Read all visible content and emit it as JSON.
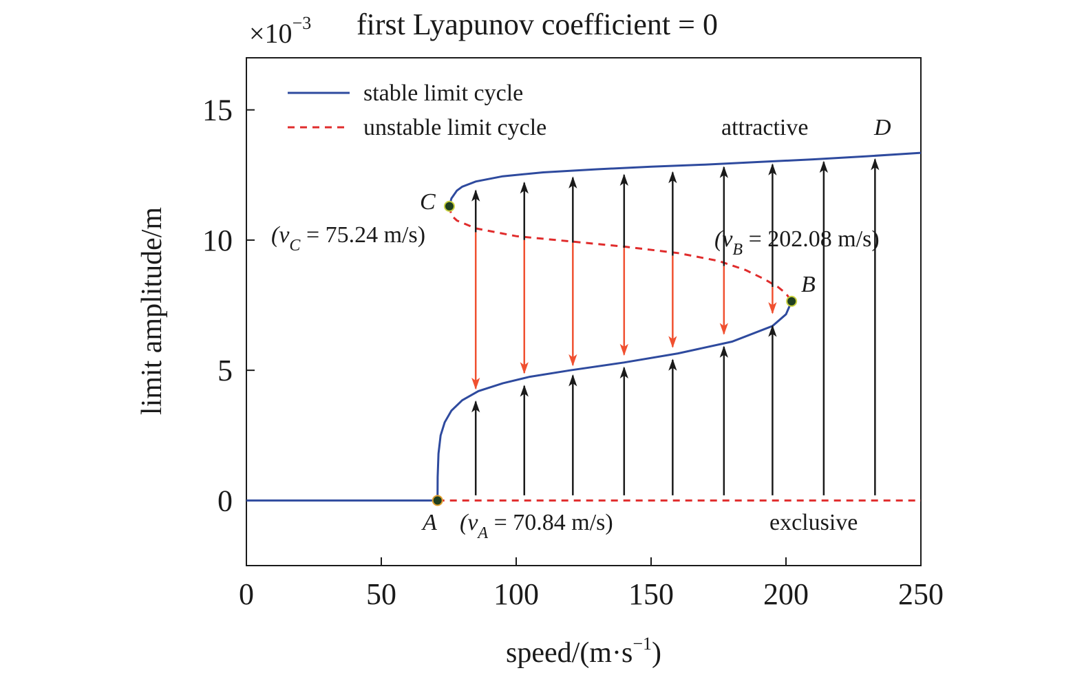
{
  "chart_data": {
    "type": "line",
    "title": "first Lyapunov coefficient = 0",
    "y_multiplier": "×10",
    "y_multiplier_exp": "−3",
    "xlabel": "speed/(m·s",
    "xlabel_exp": "−1",
    "xlabel_close": ")",
    "ylabel": "limit amplitude/m",
    "xlim": [
      0,
      250
    ],
    "ylim": [
      -2.5,
      17
    ],
    "xticks": [
      0,
      50,
      100,
      150,
      200,
      250
    ],
    "yticks": [
      0,
      5,
      10,
      15
    ],
    "colors": {
      "stable": "#2e4a9e",
      "unstable": "#e02c2c",
      "arrow_black": "#1a1a1a",
      "arrow_red": "#f05030",
      "point_fill": "#1f3f1f",
      "point_edge_A": "#e0a030",
      "point_edge": "#c8d040"
    },
    "legend": {
      "placement": "top-left",
      "entries": [
        {
          "label": "stable limit cycle",
          "style": "solid",
          "color": "#2e4a9e"
        },
        {
          "label": "unstable limit cycle",
          "style": "dashed",
          "color": "#e02c2c"
        }
      ]
    },
    "series": [
      {
        "name": "stable limit cycle",
        "style": "solid",
        "segments": [
          {
            "x": [
              0,
              70.84
            ],
            "y": [
              0,
              0
            ]
          },
          {
            "x": [
              70.84,
              70.9,
              71.2,
              72,
              73.5,
              76,
              80,
              86,
              95,
              105,
              120,
              140,
              160,
              180,
              195,
              200,
              202.08
            ],
            "y": [
              0,
              0.9,
              1.8,
              2.5,
              3.0,
              3.45,
              3.85,
              4.2,
              4.5,
              4.75,
              5.0,
              5.3,
              5.65,
              6.1,
              6.7,
              7.15,
              7.65
            ]
          },
          {
            "x": [
              75.24,
              76,
              78,
              80,
              85,
              95,
              110,
              130,
              150,
              170,
              190,
              210,
              230,
              250
            ],
            "y": [
              11.3,
              11.6,
              11.9,
              12.05,
              12.25,
              12.45,
              12.6,
              12.72,
              12.82,
              12.9,
              13.0,
              13.1,
              13.22,
              13.35
            ]
          }
        ]
      },
      {
        "name": "unstable limit cycle",
        "style": "dashed",
        "segments": [
          {
            "x": [
              70.84,
              250
            ],
            "y": [
              0,
              0
            ]
          },
          {
            "x": [
              75.24,
              76,
              78,
              85,
              100,
              120,
              140,
              160,
              175,
              185,
              192,
              197,
              200,
              202.08
            ],
            "y": [
              11.3,
              10.95,
              10.75,
              10.45,
              10.15,
              9.95,
              9.75,
              9.5,
              9.2,
              8.85,
              8.5,
              8.2,
              7.95,
              7.65
            ]
          }
        ]
      }
    ],
    "points": [
      {
        "label": "A",
        "x": 70.84,
        "y": 0,
        "note": "(v",
        "sub": "A",
        "value": " = 70.84 m/s)"
      },
      {
        "label": "B",
        "x": 202.08,
        "y": 7.65,
        "note": "(v",
        "sub": "B",
        "value": " = 202.08 m/s)"
      },
      {
        "label": "C",
        "x": 75.24,
        "y": 11.3,
        "note": "(v",
        "sub": "C",
        "value": " = 75.24 m/s)"
      }
    ],
    "label_D": "D",
    "text_attractive": "attractive",
    "text_exclusive": "exclusive",
    "arrows": {
      "up_lower": [
        {
          "x": 85,
          "y0": 0.2,
          "y1": 3.8
        },
        {
          "x": 103,
          "y0": 0.2,
          "y1": 4.4
        },
        {
          "x": 121,
          "y0": 0.2,
          "y1": 4.8
        },
        {
          "x": 140,
          "y0": 0.2,
          "y1": 5.1
        },
        {
          "x": 158,
          "y0": 0.2,
          "y1": 5.4
        },
        {
          "x": 177,
          "y0": 0.2,
          "y1": 5.9
        },
        {
          "x": 195,
          "y0": 0.2,
          "y1": 6.7
        }
      ],
      "up_upper": [
        {
          "x": 85,
          "y0": 10.3,
          "y1": 11.9
        },
        {
          "x": 103,
          "y0": 10.0,
          "y1": 12.2
        },
        {
          "x": 121,
          "y0": 9.9,
          "y1": 12.4
        },
        {
          "x": 140,
          "y0": 9.7,
          "y1": 12.5
        },
        {
          "x": 158,
          "y0": 9.4,
          "y1": 12.6
        },
        {
          "x": 177,
          "y0": 9.0,
          "y1": 12.8
        },
        {
          "x": 195,
          "y0": 8.2,
          "y1": 12.9
        }
      ],
      "up_full": [
        {
          "x": 214,
          "y0": 0.2,
          "y1": 13.0
        },
        {
          "x": 233,
          "y0": 0.2,
          "y1": 13.1
        }
      ],
      "down_red": [
        {
          "x": 85,
          "y0": 10.3,
          "y1": 4.3
        },
        {
          "x": 103,
          "y0": 10.0,
          "y1": 4.9
        },
        {
          "x": 121,
          "y0": 9.9,
          "y1": 5.2
        },
        {
          "x": 140,
          "y0": 9.7,
          "y1": 5.6
        },
        {
          "x": 158,
          "y0": 9.4,
          "y1": 5.9
        },
        {
          "x": 177,
          "y0": 9.0,
          "y1": 6.4
        },
        {
          "x": 195,
          "y0": 8.2,
          "y1": 7.2
        }
      ]
    }
  }
}
